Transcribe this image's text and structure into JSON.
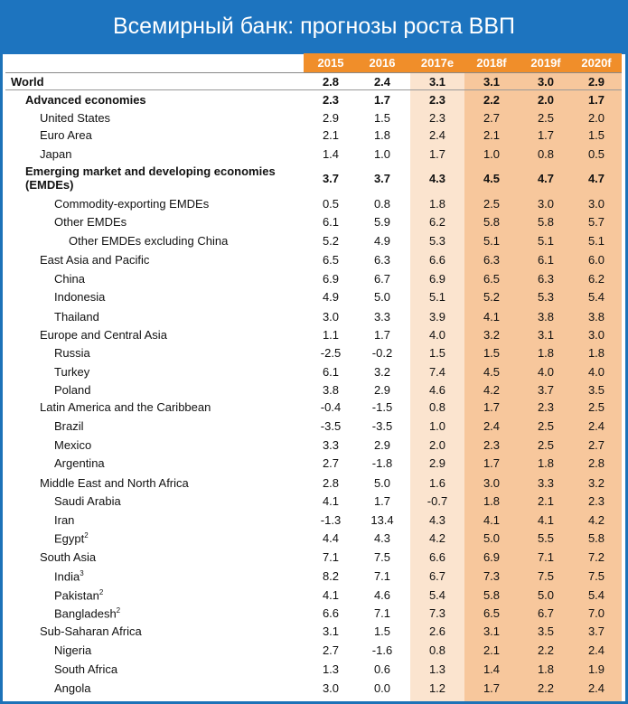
{
  "title": "Всемирный банк: прогнозы роста ВВП",
  "chart_data": {
    "type": "table",
    "columns": [
      "2015",
      "2016",
      "2017e",
      "2018f",
      "2019f",
      "2020f"
    ],
    "rows": [
      {
        "label": "World",
        "values": [
          "2.8",
          "2.4",
          "3.1",
          "3.1",
          "3.0",
          "2.9"
        ]
      },
      {
        "label": "Advanced economies",
        "values": [
          "2.3",
          "1.7",
          "2.3",
          "2.2",
          "2.0",
          "1.7"
        ]
      },
      {
        "label": "United States",
        "values": [
          "2.9",
          "1.5",
          "2.3",
          "2.7",
          "2.5",
          "2.0"
        ]
      },
      {
        "label": "Euro Area",
        "values": [
          "2.1",
          "1.8",
          "2.4",
          "2.1",
          "1.7",
          "1.5"
        ]
      },
      {
        "label": "Japan",
        "values": [
          "1.4",
          "1.0",
          "1.7",
          "1.0",
          "0.8",
          "0.5"
        ]
      },
      {
        "label": "Emerging market and developing economies (EMDEs)",
        "values": [
          "3.7",
          "3.7",
          "4.3",
          "4.5",
          "4.7",
          "4.7"
        ]
      },
      {
        "label": "Commodity-exporting EMDEs",
        "values": [
          "0.5",
          "0.8",
          "1.8",
          "2.5",
          "3.0",
          "3.0"
        ]
      },
      {
        "label": "Other EMDEs",
        "values": [
          "6.1",
          "5.9",
          "6.2",
          "5.8",
          "5.8",
          "5.7"
        ]
      },
      {
        "label": "Other EMDEs excluding China",
        "values": [
          "5.2",
          "4.9",
          "5.3",
          "5.1",
          "5.1",
          "5.1"
        ]
      },
      {
        "label": "East Asia and Pacific",
        "values": [
          "6.5",
          "6.3",
          "6.6",
          "6.3",
          "6.1",
          "6.0"
        ]
      },
      {
        "label": "China",
        "values": [
          "6.9",
          "6.7",
          "6.9",
          "6.5",
          "6.3",
          "6.2"
        ]
      },
      {
        "label": "Indonesia",
        "values": [
          "4.9",
          "5.0",
          "5.1",
          "5.2",
          "5.3",
          "5.4"
        ]
      },
      {
        "label": "Thailand",
        "values": [
          "3.0",
          "3.3",
          "3.9",
          "4.1",
          "3.8",
          "3.8"
        ]
      },
      {
        "label": "Europe and Central Asia",
        "values": [
          "1.1",
          "1.7",
          "4.0",
          "3.2",
          "3.1",
          "3.0"
        ]
      },
      {
        "label": "Russia",
        "values": [
          "-2.5",
          "-0.2",
          "1.5",
          "1.5",
          "1.8",
          "1.8"
        ]
      },
      {
        "label": "Turkey",
        "values": [
          "6.1",
          "3.2",
          "7.4",
          "4.5",
          "4.0",
          "4.0"
        ]
      },
      {
        "label": "Poland",
        "values": [
          "3.8",
          "2.9",
          "4.6",
          "4.2",
          "3.7",
          "3.5"
        ]
      },
      {
        "label": "Latin America and the Caribbean",
        "values": [
          "-0.4",
          "-1.5",
          "0.8",
          "1.7",
          "2.3",
          "2.5"
        ]
      },
      {
        "label": "Brazil",
        "values": [
          "-3.5",
          "-3.5",
          "1.0",
          "2.4",
          "2.5",
          "2.4"
        ]
      },
      {
        "label": "Mexico",
        "values": [
          "3.3",
          "2.9",
          "2.0",
          "2.3",
          "2.5",
          "2.7"
        ]
      },
      {
        "label": "Argentina",
        "values": [
          "2.7",
          "-1.8",
          "2.9",
          "1.7",
          "1.8",
          "2.8"
        ]
      },
      {
        "label": "Middle East and North Africa",
        "values": [
          "2.8",
          "5.0",
          "1.6",
          "3.0",
          "3.3",
          "3.2"
        ]
      },
      {
        "label": "Saudi Arabia",
        "values": [
          "4.1",
          "1.7",
          "-0.7",
          "1.8",
          "2.1",
          "2.3"
        ]
      },
      {
        "label": "Iran",
        "values": [
          "-1.3",
          "13.4",
          "4.3",
          "4.1",
          "4.1",
          "4.2"
        ]
      },
      {
        "label": "Egypt",
        "sup": "2",
        "values": [
          "4.4",
          "4.3",
          "4.2",
          "5.0",
          "5.5",
          "5.8"
        ]
      },
      {
        "label": "South Asia",
        "values": [
          "7.1",
          "7.5",
          "6.6",
          "6.9",
          "7.1",
          "7.2"
        ]
      },
      {
        "label": "India",
        "sup": "3",
        "values": [
          "8.2",
          "7.1",
          "6.7",
          "7.3",
          "7.5",
          "7.5"
        ]
      },
      {
        "label": "Pakistan",
        "sup": "2",
        "values": [
          "4.1",
          "4.6",
          "5.4",
          "5.8",
          "5.0",
          "5.4"
        ]
      },
      {
        "label": "Bangladesh",
        "sup": "2",
        "values": [
          "6.6",
          "7.1",
          "7.3",
          "6.5",
          "6.7",
          "7.0"
        ]
      },
      {
        "label": "Sub-Saharan Africa",
        "values": [
          "3.1",
          "1.5",
          "2.6",
          "3.1",
          "3.5",
          "3.7"
        ]
      },
      {
        "label": "Nigeria",
        "values": [
          "2.7",
          "-1.6",
          "0.8",
          "2.1",
          "2.2",
          "2.4"
        ]
      },
      {
        "label": "South Africa",
        "values": [
          "1.3",
          "0.6",
          "1.3",
          "1.4",
          "1.8",
          "1.9"
        ]
      },
      {
        "label": "Angola",
        "values": [
          "3.0",
          "0.0",
          "1.2",
          "1.7",
          "2.2",
          "2.4"
        ]
      }
    ]
  },
  "colors": {
    "title_bg": "#1d74bf",
    "header_bg": "#f08e2a",
    "estimate_col_bg": "#fbe4cf",
    "forecast_col_bg": "#f7c79c"
  }
}
